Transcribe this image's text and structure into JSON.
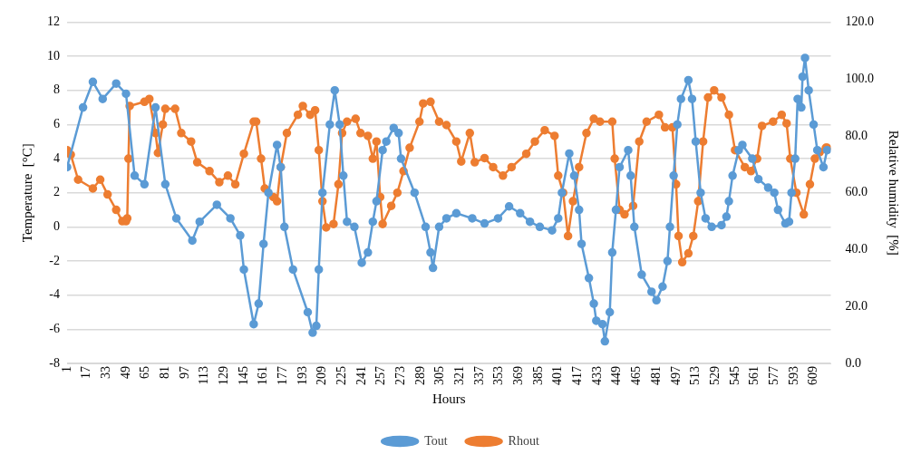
{
  "chart_data": {
    "type": "line",
    "xlabel": "Hours",
    "ylabel": "Temperature  [°C]",
    "y2label": "Relative humidity  [%]",
    "grid": "y",
    "legend": "bottom",
    "marker": "circle",
    "line_style": "solid",
    "xlim": [
      1,
      623
    ],
    "xticks": [
      1,
      17,
      33,
      49,
      65,
      81,
      97,
      113,
      129,
      145,
      161,
      177,
      193,
      209,
      225,
      241,
      257,
      273,
      289,
      305,
      321,
      337,
      353,
      369,
      385,
      401,
      417,
      433,
      449,
      465,
      481,
      497,
      513,
      529,
      545,
      561,
      577,
      593,
      609
    ],
    "ylim": [
      -8,
      12
    ],
    "yticks": [
      -8,
      -6,
      -4,
      -2,
      0,
      2,
      4,
      6,
      8,
      10,
      12
    ],
    "y2lim": [
      0,
      120
    ],
    "y2ticks": [
      {
        "value": 0,
        "label": "0.0"
      },
      {
        "value": 20,
        "label": "20.0"
      },
      {
        "value": 40,
        "label": "40.0"
      },
      {
        "value": 60,
        "label": "60.0"
      },
      {
        "value": 80,
        "label": "80.0"
      },
      {
        "value": 100,
        "label": "100.0"
      },
      {
        "value": 120,
        "label": "120.0"
      }
    ],
    "series": [
      {
        "name": "Tout",
        "color": "#5b9bd5",
        "x": [
          1,
          14,
          22,
          30,
          41,
          49,
          56,
          64,
          73,
          81,
          90,
          103,
          109,
          123,
          134,
          142,
          145,
          153,
          157,
          161,
          165,
          172,
          175,
          178,
          185,
          197,
          201,
          204,
          206,
          209,
          215,
          219,
          223,
          226,
          229,
          235,
          241,
          246,
          250,
          253,
          258,
          261,
          267,
          271,
          273,
          284,
          293,
          297,
          299,
          304,
          310,
          318,
          331,
          341,
          352,
          361,
          370,
          378,
          386,
          396,
          401,
          404,
          410,
          414,
          418,
          420,
          426,
          430,
          432,
          437,
          439,
          443,
          445,
          448,
          451,
          458,
          460,
          463,
          469,
          477,
          481,
          486,
          490,
          492,
          495,
          498,
          501,
          507,
          510,
          513,
          517,
          521,
          526,
          534,
          538,
          540,
          543,
          548,
          551,
          559,
          564,
          572,
          577,
          580,
          586,
          589,
          591,
          594,
          596,
          599,
          600,
          602,
          605,
          609,
          612,
          617,
          620
        ],
        "values": [
          3.5,
          7,
          8.5,
          7.5,
          8.4,
          7.8,
          3,
          2.5,
          7,
          2.5,
          0.5,
          -0.8,
          0.3,
          1.3,
          0.5,
          -0.5,
          -2.5,
          -5.7,
          -4.5,
          -1,
          2,
          4.8,
          3.5,
          0,
          -2.5,
          -5,
          -6.2,
          -5.8,
          -2.5,
          2,
          6,
          8,
          6,
          3,
          0.3,
          0,
          -2.1,
          -1.5,
          0.3,
          1.5,
          4.5,
          5,
          5.8,
          5.5,
          4,
          2,
          0,
          -1.5,
          -2.4,
          0,
          0.5,
          0.8,
          0.5,
          0.2,
          0.5,
          1.2,
          0.8,
          0.3,
          0,
          -0.2,
          0.5,
          2,
          4.3,
          3,
          1,
          -1,
          -3,
          -4.5,
          -5.5,
          -5.7,
          -6.7,
          -5,
          -1.5,
          1,
          3.5,
          4.5,
          3,
          0,
          -2.8,
          -3.8,
          -4.3,
          -3.5,
          -2,
          0,
          3,
          6,
          7.5,
          8.6,
          7.5,
          5,
          2,
          0.5,
          0,
          0.1,
          0.6,
          1.5,
          3,
          4.5,
          4.8,
          4,
          2.8,
          2.3,
          2,
          1,
          0.2,
          0.3,
          2,
          4,
          7.5,
          7,
          8.8,
          9.9,
          8,
          6,
          4.5,
          3.5,
          4.5
        ]
      },
      {
        "name": "Rhout",
        "color": "#ed7d31",
        "axis": "y2",
        "x": [
          1,
          4,
          10,
          22,
          28,
          34,
          41,
          46,
          49,
          50,
          51,
          52,
          64,
          68,
          73,
          75,
          79,
          81,
          89,
          94,
          102,
          107,
          117,
          125,
          132,
          138,
          145,
          153,
          155,
          159,
          162,
          169,
          172,
          175,
          180,
          189,
          193,
          199,
          203,
          206,
          209,
          212,
          218,
          222,
          225,
          229,
          236,
          240,
          246,
          250,
          253,
          256,
          258,
          265,
          270,
          275,
          280,
          288,
          291,
          297,
          304,
          310,
          318,
          322,
          329,
          333,
          341,
          348,
          356,
          363,
          375,
          382,
          390,
          398,
          401,
          405,
          409,
          413,
          418,
          424,
          430,
          435,
          445,
          447,
          451,
          455,
          462,
          467,
          473,
          483,
          488,
          494,
          497,
          499,
          502,
          507,
          511,
          515,
          519,
          523,
          528,
          534,
          540,
          545,
          553,
          558,
          563,
          567,
          576,
          583,
          587,
          590,
          595,
          601,
          606,
          610,
          614,
          619,
          620
        ],
        "values": [
          75,
          73.4,
          64.6,
          61.5,
          64.6,
          59.4,
          54,
          50,
          50,
          51,
          72,
          90.5,
          92,
          93,
          81,
          74,
          84,
          89.5,
          89.5,
          81,
          78,
          70.7,
          67.6,
          63.7,
          66,
          63,
          73.7,
          85,
          85,
          72,
          61.5,
          58.5,
          57,
          69,
          81,
          87.4,
          90.5,
          87.4,
          89,
          75,
          57,
          47.8,
          49,
          63,
          81,
          85,
          86,
          81,
          80,
          72,
          78,
          58.5,
          49,
          55.4,
          60,
          67.6,
          75.8,
          85,
          91.4,
          92,
          85,
          83.8,
          78,
          71,
          81,
          70.7,
          72.2,
          69,
          66,
          69,
          73.7,
          78,
          82,
          80,
          66,
          60,
          44.8,
          57,
          69,
          81,
          86,
          85,
          85,
          72,
          54,
          52.4,
          55.4,
          78,
          85,
          87.4,
          83,
          83,
          63,
          44.8,
          35.6,
          38.7,
          44.8,
          57,
          78,
          93.5,
          96,
          93.5,
          87.4,
          75,
          69,
          67.6,
          72,
          83.5,
          85,
          87.4,
          84.4,
          72,
          60,
          52.4,
          63,
          72,
          74.3,
          75.8,
          75.8
        ]
      }
    ]
  }
}
